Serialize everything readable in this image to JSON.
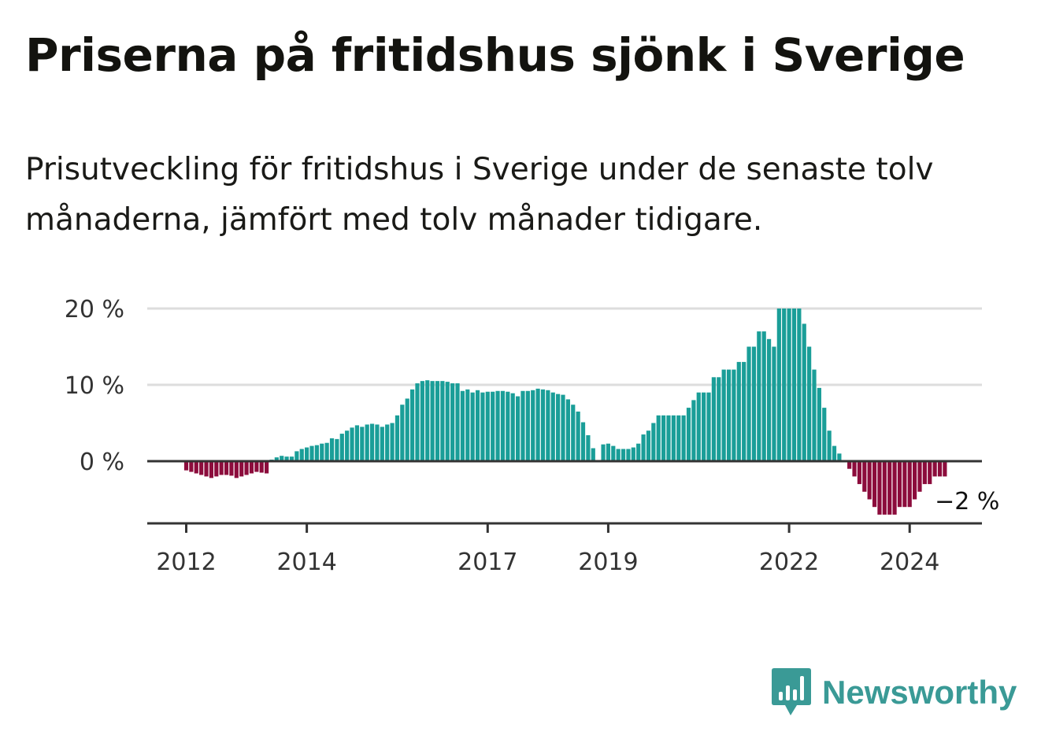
{
  "header": {
    "title": "Priserna på fritidshus sjönk i Sverige",
    "subtitle": "Prisutveckling för fritidshus i Sverige under de senaste tolv månaderna, jämfört med tolv månader tidigare."
  },
  "brand": {
    "name": "Newsworthy",
    "color": "#3a9a96"
  },
  "colors": {
    "positive": "#1a9e98",
    "negative": "#8c0c3c",
    "grid": "#dddddd",
    "axis": "#333333"
  },
  "chart_data": {
    "type": "bar",
    "title": "",
    "xlabel": "",
    "ylabel": "",
    "y_unit": "%",
    "ylim": [
      -8,
      20
    ],
    "y_ticks": [
      {
        "value": 0,
        "label": "0 %"
      },
      {
        "value": 10,
        "label": "10 %"
      },
      {
        "value": 20,
        "label": "20 %"
      }
    ],
    "x_ticks": [
      {
        "index": 0,
        "label": "2012"
      },
      {
        "index": 24,
        "label": "2014"
      },
      {
        "index": 60,
        "label": "2017"
      },
      {
        "index": 84,
        "label": "2019"
      },
      {
        "index": 120,
        "label": "2022"
      },
      {
        "index": 144,
        "label": "2024"
      }
    ],
    "grid": true,
    "start_period": "2012-01",
    "values": [
      -1.2,
      -1.4,
      -1.6,
      -1.8,
      -2.0,
      -2.2,
      -2.0,
      -1.8,
      -1.8,
      -1.9,
      -2.2,
      -2.0,
      -1.8,
      -1.6,
      -1.4,
      -1.5,
      -1.6,
      0.2,
      0.5,
      0.7,
      0.6,
      0.6,
      1.3,
      1.6,
      1.8,
      2.0,
      2.1,
      2.3,
      2.4,
      3.0,
      2.9,
      3.6,
      4.0,
      4.4,
      4.7,
      4.5,
      4.8,
      4.9,
      4.8,
      4.5,
      4.8,
      5.0,
      6.0,
      7.4,
      8.2,
      9.4,
      10.2,
      10.5,
      10.6,
      10.5,
      10.5,
      10.5,
      10.4,
      10.2,
      10.2,
      9.2,
      9.4,
      9.0,
      9.3,
      9.0,
      9.1,
      9.1,
      9.2,
      9.2,
      9.1,
      8.9,
      8.5,
      9.2,
      9.2,
      9.3,
      9.5,
      9.4,
      9.3,
      9.0,
      8.8,
      8.7,
      8.1,
      7.4,
      6.5,
      5.1,
      3.4,
      1.7,
      0,
      2.2,
      2.3,
      2.0,
      1.6,
      1.6,
      1.6,
      1.8,
      2.3,
      3.5,
      4.0,
      5.0,
      6.0,
      6.0,
      6.0,
      6.0,
      6.0,
      6.0,
      7.0,
      8.0,
      9.0,
      9.0,
      9.0,
      11.0,
      11.0,
      12.0,
      12.0,
      12.0,
      13.0,
      13.0,
      15.0,
      15.0,
      17.0,
      17.0,
      16.0,
      15.0,
      20.0,
      20.0,
      20.0,
      20.0,
      20.0,
      18.0,
      15.0,
      12.0,
      9.6,
      7.0,
      4.0,
      2.0,
      1.0,
      0,
      -1.0,
      -2.0,
      -3.0,
      -4.0,
      -5.0,
      -6.0,
      -7.0,
      -7.0,
      -7.0,
      -7.0,
      -6.0,
      -6.0,
      -6.0,
      -5.0,
      -4.0,
      -3.0,
      -3.0,
      -2.0,
      -2.0,
      -2.0
    ],
    "annotations": [
      {
        "index": 149,
        "label": "−2 %"
      }
    ]
  }
}
